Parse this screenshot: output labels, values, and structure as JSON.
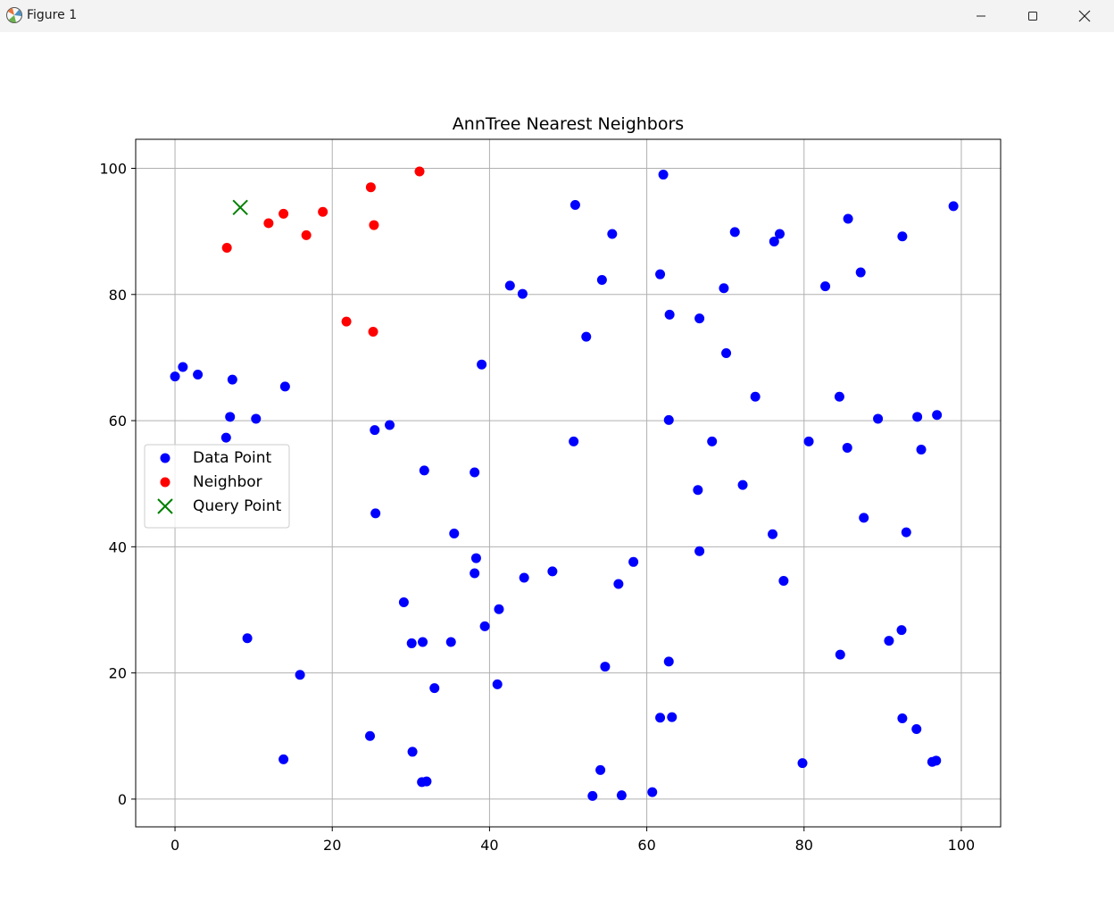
{
  "window": {
    "title": "Figure 1",
    "icon": "matplotlib-icon",
    "buttons": [
      "minimize-icon",
      "maximize-icon",
      "close-icon"
    ]
  },
  "chart_data": {
    "type": "scatter",
    "title": "AnnTree Nearest Neighbors",
    "xlabel": "",
    "ylabel": "",
    "xlim": [
      -5,
      105
    ],
    "ylim": [
      -4.4,
      104.6
    ],
    "xticks": [
      0,
      20,
      40,
      60,
      80,
      100
    ],
    "yticks": [
      0,
      20,
      40,
      60,
      80,
      100
    ],
    "grid": true,
    "legend_position": "center-left",
    "series": [
      {
        "name": "Data Point",
        "marker": "circle",
        "color": "#0000ff",
        "points": [
          [
            0,
            67
          ],
          [
            1,
            68.5
          ],
          [
            2.9,
            67.3
          ],
          [
            7.3,
            66.5
          ],
          [
            14,
            65.4
          ],
          [
            7,
            60.6
          ],
          [
            10.3,
            60.3
          ],
          [
            6.5,
            57.3
          ],
          [
            9.2,
            25.5
          ],
          [
            15.9,
            19.7
          ],
          [
            13.8,
            6.3
          ],
          [
            24.8,
            10
          ],
          [
            25.4,
            58.5
          ],
          [
            27.3,
            59.3
          ],
          [
            25.5,
            45.3
          ],
          [
            31.7,
            52.1
          ],
          [
            29.1,
            31.2
          ],
          [
            30.1,
            24.7
          ],
          [
            31.5,
            24.9
          ],
          [
            35.1,
            24.9
          ],
          [
            33,
            17.6
          ],
          [
            30.2,
            7.5
          ],
          [
            31.4,
            2.7
          ],
          [
            32,
            2.8
          ],
          [
            35.5,
            42.1
          ],
          [
            39,
            68.9
          ],
          [
            38.1,
            51.8
          ],
          [
            38.3,
            38.2
          ],
          [
            38.1,
            35.8
          ],
          [
            39.4,
            27.4
          ],
          [
            41.2,
            30.1
          ],
          [
            41,
            18.2
          ],
          [
            42.6,
            81.4
          ],
          [
            44.2,
            80.1
          ],
          [
            44.4,
            35.1
          ],
          [
            48,
            36.1
          ],
          [
            50.9,
            94.2
          ],
          [
            50.7,
            56.7
          ],
          [
            52.3,
            73.3
          ],
          [
            53.1,
            0.5
          ],
          [
            54.1,
            4.6
          ],
          [
            54.7,
            21
          ],
          [
            55.6,
            89.6
          ],
          [
            54.3,
            82.3
          ],
          [
            56.4,
            34.1
          ],
          [
            56.8,
            0.6
          ],
          [
            58.3,
            37.6
          ],
          [
            60.7,
            1.1
          ],
          [
            62.1,
            99
          ],
          [
            61.7,
            83.2
          ],
          [
            62.9,
            76.8
          ],
          [
            62.8,
            60.1
          ],
          [
            62.8,
            21.8
          ],
          [
            61.7,
            12.9
          ],
          [
            63.2,
            13
          ],
          [
            66.7,
            76.2
          ],
          [
            66.5,
            49
          ],
          [
            66.7,
            39.3
          ],
          [
            68.3,
            56.7
          ],
          [
            69.8,
            81
          ],
          [
            70.1,
            70.7
          ],
          [
            71.2,
            89.9
          ],
          [
            72.2,
            49.8
          ],
          [
            73.8,
            63.8
          ],
          [
            76.2,
            88.4
          ],
          [
            76.9,
            89.6
          ],
          [
            76,
            42
          ],
          [
            77.4,
            34.6
          ],
          [
            79.8,
            5.7
          ],
          [
            80.6,
            56.7
          ],
          [
            82.7,
            81.3
          ],
          [
            84.5,
            63.8
          ],
          [
            84.6,
            22.9
          ],
          [
            85.6,
            92
          ],
          [
            85.5,
            55.7
          ],
          [
            87.2,
            83.5
          ],
          [
            87.6,
            44.6
          ],
          [
            89.4,
            60.3
          ],
          [
            92.5,
            89.2
          ],
          [
            92.4,
            26.8
          ],
          [
            93,
            42.3
          ],
          [
            90.8,
            25.1
          ],
          [
            92.5,
            12.8
          ],
          [
            94.4,
            60.6
          ],
          [
            94.9,
            55.4
          ],
          [
            94.3,
            11.1
          ],
          [
            96.9,
            60.9
          ],
          [
            96.3,
            5.9
          ],
          [
            96.8,
            6.1
          ],
          [
            99,
            94
          ]
        ]
      },
      {
        "name": "Neighbor",
        "marker": "circle",
        "color": "#ff0000",
        "points": [
          [
            6.6,
            87.4
          ],
          [
            11.9,
            91.3
          ],
          [
            13.8,
            92.8
          ],
          [
            16.7,
            89.4
          ],
          [
            18.8,
            93.1
          ],
          [
            21.8,
            75.7
          ],
          [
            25.2,
            74.1
          ],
          [
            25.3,
            91
          ],
          [
            24.9,
            97
          ],
          [
            31.1,
            99.5
          ]
        ]
      },
      {
        "name": "Query Point",
        "marker": "x",
        "color": "#008000",
        "points": [
          [
            8.3,
            93.8
          ]
        ]
      }
    ]
  }
}
